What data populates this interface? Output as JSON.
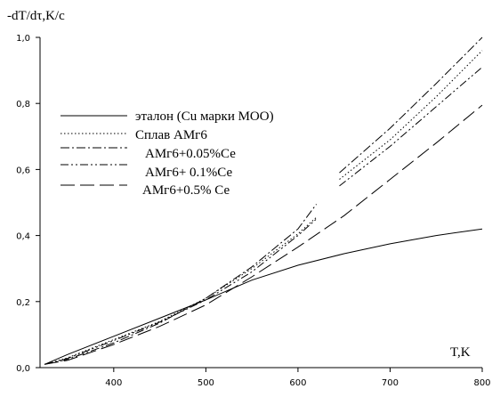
{
  "chart_data": {
    "type": "line",
    "ylabel": "-dT/dτ,K/c",
    "xlabel": "T,K",
    "xlim": [
      320,
      800
    ],
    "ylim": [
      0,
      1.0
    ],
    "x_ticks": [
      {
        "value": 400,
        "label": "400"
      },
      {
        "value": 500,
        "label": "500"
      },
      {
        "value": 600,
        "label": "600"
      },
      {
        "value": 700,
        "label": "700"
      },
      {
        "value": 800,
        "label": "800"
      }
    ],
    "y_ticks": [
      {
        "value": 0.0,
        "label": "0,0"
      },
      {
        "value": 0.2,
        "label": "0,2"
      },
      {
        "value": 0.4,
        "label": "0,4"
      },
      {
        "value": 0.6,
        "label": "0,6"
      },
      {
        "value": 0.8,
        "label": "0,8"
      },
      {
        "value": 1.0,
        "label": "1,0"
      }
    ],
    "grid": false,
    "legend_position": "top-left",
    "series": [
      {
        "name": "эталон (Cu марки МОО)",
        "dash": "solid",
        "segments": [
          {
            "x": [
              325,
              350,
              400,
              450,
              500,
              550,
              600,
              650,
              700,
              750,
              800
            ],
            "y": [
              0.01,
              0.04,
              0.095,
              0.15,
              0.205,
              0.265,
              0.31,
              0.345,
              0.375,
              0.4,
              0.42
            ]
          }
        ]
      },
      {
        "name": "Сплав АМг6",
        "dash": "dotted",
        "segments": [
          {
            "x": [
              325,
              350,
              400,
              450,
              500,
              550,
              600,
              620
            ],
            "y": [
              0.01,
              0.03,
              0.085,
              0.14,
              0.21,
              0.3,
              0.405,
              0.455
            ]
          },
          {
            "x": [
              645,
              700,
              750,
              800
            ],
            "y": [
              0.57,
              0.69,
              0.82,
              0.96
            ]
          }
        ]
      },
      {
        "name": "АМг6+0.05%Се",
        "dash": "dash-dot",
        "segments": [
          {
            "x": [
              325,
              350,
              400,
              450,
              500,
              550,
              600,
              620
            ],
            "y": [
              0.01,
              0.025,
              0.075,
              0.135,
              0.21,
              0.305,
              0.42,
              0.495
            ]
          },
          {
            "x": [
              645,
              700,
              750,
              800
            ],
            "y": [
              0.59,
              0.725,
              0.86,
              1.0
            ]
          }
        ]
      },
      {
        "name": "АМг6+ 0.1%Се",
        "dash": "dash-dot-dot",
        "segments": [
          {
            "x": [
              325,
              350,
              400,
              450,
              500,
              550,
              600,
              620
            ],
            "y": [
              0.01,
              0.028,
              0.082,
              0.138,
              0.205,
              0.29,
              0.4,
              0.45
            ]
          },
          {
            "x": [
              645,
              700,
              750,
              800
            ],
            "y": [
              0.55,
              0.67,
              0.79,
              0.91
            ]
          }
        ]
      },
      {
        "name": "АМг6+0.5% Се",
        "dash": "long-dash",
        "segments": [
          {
            "x": [
              325,
              350,
              400,
              450,
              500,
              550,
              600,
              650,
              700,
              750,
              800
            ],
            "y": [
              0.01,
              0.022,
              0.07,
              0.125,
              0.19,
              0.275,
              0.365,
              0.46,
              0.57,
              0.68,
              0.795
            ]
          }
        ]
      }
    ]
  }
}
